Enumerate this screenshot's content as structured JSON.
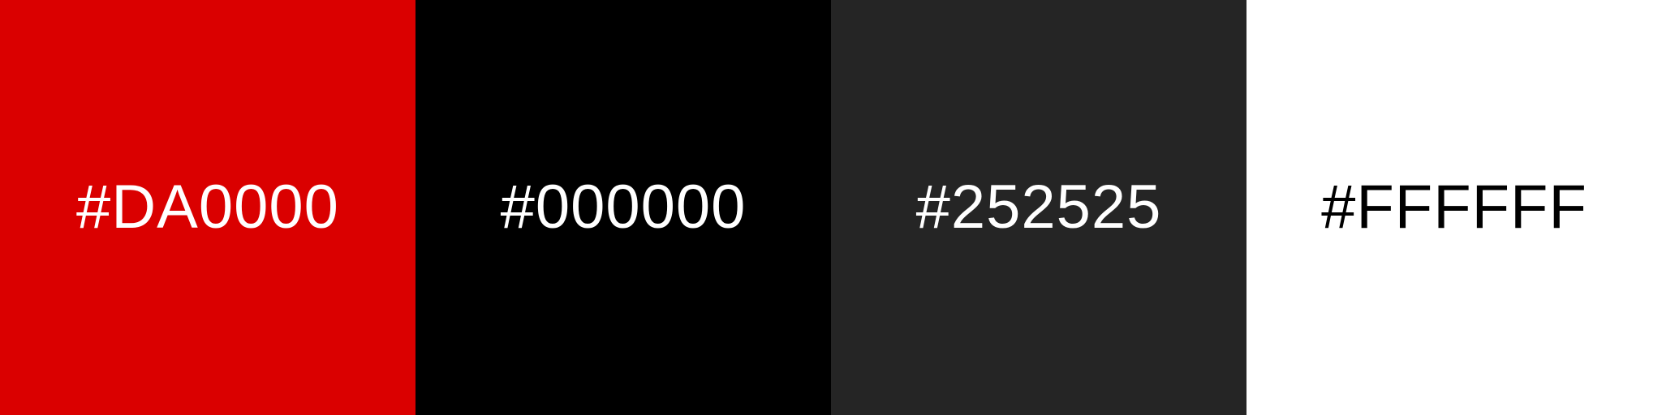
{
  "swatches": [
    {
      "label": "#DA0000",
      "color": "#DA0000",
      "text_color": "#FFFFFF"
    },
    {
      "label": "#000000",
      "color": "#000000",
      "text_color": "#FFFFFF"
    },
    {
      "label": "#252525",
      "color": "#252525",
      "text_color": "#FFFFFF"
    },
    {
      "label": "#FFFFFF",
      "color": "#FFFFFF",
      "text_color": "#000000"
    }
  ]
}
